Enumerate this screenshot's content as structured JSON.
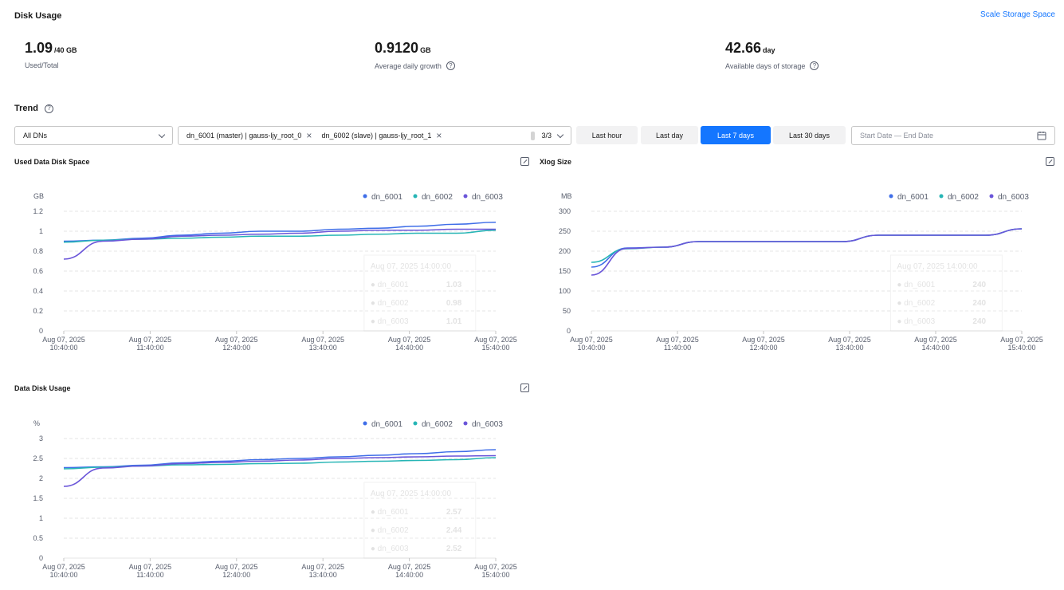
{
  "header": {
    "title": "Disk Usage",
    "scale_link": "Scale Storage Space"
  },
  "metrics": [
    {
      "value": "1.09",
      "unit": "/40 GB",
      "label": "Used/Total"
    },
    {
      "value": "0.9120",
      "unit": "GB",
      "label": "Average daily growth"
    },
    {
      "value": "42.66",
      "unit": "day",
      "label": "Available days of storage"
    }
  ],
  "trend": {
    "title": "Trend",
    "dn_select": "All DNs",
    "tags": [
      "dn_6001 (master) | gauss-ljy_root_0",
      "dn_6002 (slave) | gauss-ljy_root_1"
    ],
    "tag_count": "3/3",
    "time_buttons": [
      "Last hour",
      "Last day",
      "Last 7 days",
      "Last 30 days"
    ],
    "active_time": "Last 7 days",
    "date_placeholder": "Start Date — End Date"
  },
  "colors": {
    "dn_6001": "#3f6ee8",
    "dn_6002": "#26b5b5",
    "dn_6003": "#6a55d9",
    "accent": "#1476ff"
  },
  "chart_data": [
    {
      "type": "line",
      "title": "Used Data Disk Space",
      "ylabel": "GB",
      "ylim": [
        0,
        1.2
      ],
      "yticks": [
        "0",
        "0.2",
        "0.4",
        "0.6",
        "0.8",
        "1",
        "1.2"
      ],
      "x_ticks": [
        {
          "date": "Aug 07, 2025",
          "time": "10:40:00"
        },
        {
          "date": "Aug 07, 2025",
          "time": "11:40:00"
        },
        {
          "date": "Aug 07, 2025",
          "time": "12:40:00"
        },
        {
          "date": "Aug 07, 2025",
          "time": "13:40:00"
        },
        {
          "date": "Aug 07, 2025",
          "time": "14:40:00"
        },
        {
          "date": "Aug 07, 2025",
          "time": "15:40:00"
        }
      ],
      "legend": "top-right",
      "series": [
        {
          "name": "dn_6001",
          "values": [
            0.9,
            0.91,
            0.93,
            0.96,
            0.98,
            1.0,
            1.0,
            1.02,
            1.03,
            1.05,
            1.07,
            1.09
          ]
        },
        {
          "name": "dn_6002",
          "values": [
            0.89,
            0.91,
            0.92,
            0.93,
            0.94,
            0.95,
            0.95,
            0.96,
            0.97,
            0.98,
            0.98,
            1.01
          ]
        },
        {
          "name": "dn_6003",
          "values": [
            0.72,
            0.9,
            0.92,
            0.95,
            0.96,
            0.97,
            0.98,
            1.0,
            1.01,
            1.01,
            1.02,
            1.02
          ]
        }
      ],
      "tooltip": {
        "time": "Aug 07, 2025 14:00:00",
        "rows": [
          {
            "name": "dn_6001",
            "value": "1.03"
          },
          {
            "name": "dn_6002",
            "value": "0.98"
          },
          {
            "name": "dn_6003",
            "value": "1.01"
          }
        ]
      }
    },
    {
      "type": "line",
      "title": "Xlog Size",
      "ylabel": "MB",
      "ylim": [
        0,
        300
      ],
      "yticks": [
        "0",
        "50",
        "100",
        "150",
        "200",
        "250",
        "300"
      ],
      "x_ticks": [
        {
          "date": "Aug 07, 2025",
          "time": "10:40:00"
        },
        {
          "date": "Aug 07, 2025",
          "time": "11:40:00"
        },
        {
          "date": "Aug 07, 2025",
          "time": "12:40:00"
        },
        {
          "date": "Aug 07, 2025",
          "time": "13:40:00"
        },
        {
          "date": "Aug 07, 2025",
          "time": "14:40:00"
        },
        {
          "date": "Aug 07, 2025",
          "time": "15:40:00"
        }
      ],
      "legend": "top-right",
      "series": [
        {
          "name": "dn_6001",
          "values": [
            160,
            208,
            210,
            224,
            224,
            224,
            224,
            224,
            240,
            240,
            240,
            240,
            256
          ]
        },
        {
          "name": "dn_6002",
          "values": [
            172,
            206,
            210,
            224,
            224,
            224,
            224,
            224,
            240,
            240,
            240,
            240,
            256
          ]
        },
        {
          "name": "dn_6003",
          "values": [
            140,
            207,
            210,
            224,
            224,
            224,
            224,
            224,
            240,
            240,
            240,
            240,
            256
          ]
        }
      ],
      "tooltip": {
        "time": "Aug 07, 2025 14:00:00",
        "rows": [
          {
            "name": "dn_6001",
            "value": "240"
          },
          {
            "name": "dn_6002",
            "value": "240"
          },
          {
            "name": "dn_6003",
            "value": "240"
          }
        ]
      }
    },
    {
      "type": "line",
      "title": "Data Disk Usage",
      "ylabel": "%",
      "ylim": [
        0,
        3
      ],
      "yticks": [
        "0",
        "0.5",
        "1",
        "1.5",
        "2",
        "2.5",
        "3"
      ],
      "x_ticks": [
        {
          "date": "Aug 07, 2025",
          "time": "10:40:00"
        },
        {
          "date": "Aug 07, 2025",
          "time": "11:40:00"
        },
        {
          "date": "Aug 07, 2025",
          "time": "12:40:00"
        },
        {
          "date": "Aug 07, 2025",
          "time": "13:40:00"
        },
        {
          "date": "Aug 07, 2025",
          "time": "14:40:00"
        },
        {
          "date": "Aug 07, 2025",
          "time": "15:40:00"
        }
      ],
      "legend": "top-right",
      "series": [
        {
          "name": "dn_6001",
          "values": [
            2.27,
            2.29,
            2.33,
            2.39,
            2.43,
            2.47,
            2.5,
            2.54,
            2.58,
            2.62,
            2.67,
            2.72
          ]
        },
        {
          "name": "dn_6002",
          "values": [
            2.24,
            2.28,
            2.31,
            2.34,
            2.35,
            2.37,
            2.38,
            2.41,
            2.43,
            2.45,
            2.47,
            2.52
          ]
        },
        {
          "name": "dn_6003",
          "values": [
            1.8,
            2.26,
            2.31,
            2.37,
            2.4,
            2.43,
            2.46,
            2.5,
            2.52,
            2.54,
            2.56,
            2.57
          ]
        }
      ],
      "tooltip": {
        "time": "Aug 07, 2025 14:00:00",
        "rows": [
          {
            "name": "dn_6001",
            "value": "2.57"
          },
          {
            "name": "dn_6002",
            "value": "2.44"
          },
          {
            "name": "dn_6003",
            "value": "2.52"
          }
        ]
      }
    }
  ]
}
